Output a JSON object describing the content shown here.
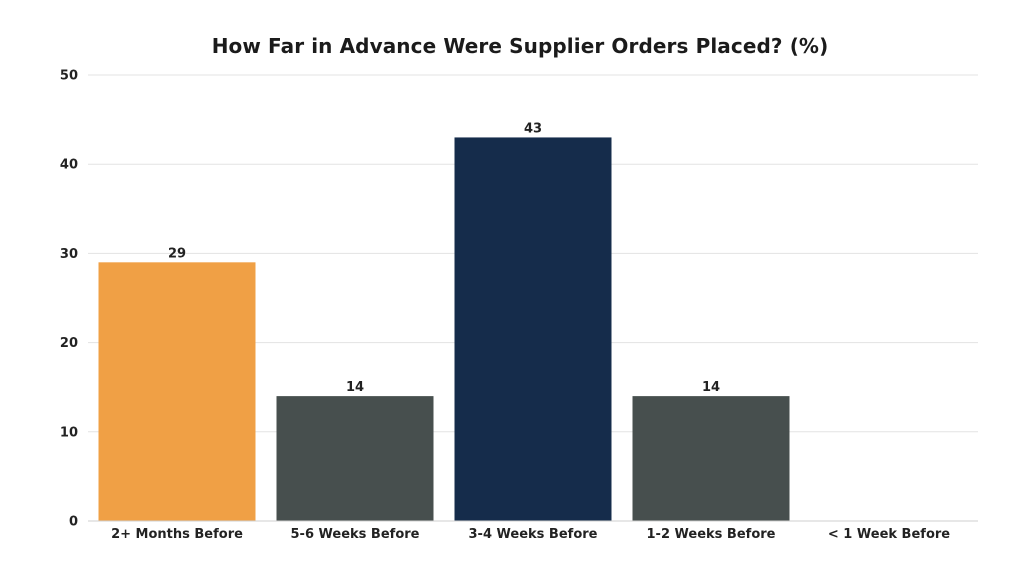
{
  "chart_data": {
    "type": "bar",
    "title": "How Far in Advance Were Supplier Orders Placed? (%)",
    "xlabel": "",
    "ylabel": "",
    "ylim": [
      0,
      50
    ],
    "yticks": [
      0,
      10,
      20,
      30,
      40,
      50
    ],
    "categories": [
      "2+ Months Before",
      "5-6 Weeks Before",
      "3-4 Weeks Before",
      "1-2 Weeks Before",
      "< 1 Week Before"
    ],
    "values": [
      29,
      14,
      43,
      14,
      0
    ],
    "data_labels": [
      "29",
      "14",
      "43",
      "14",
      ""
    ],
    "colors": [
      "#F0A045",
      "#474F4E",
      "#152C4B",
      "#474F4E",
      "#474F4E"
    ],
    "grid": true,
    "legend": "none"
  }
}
